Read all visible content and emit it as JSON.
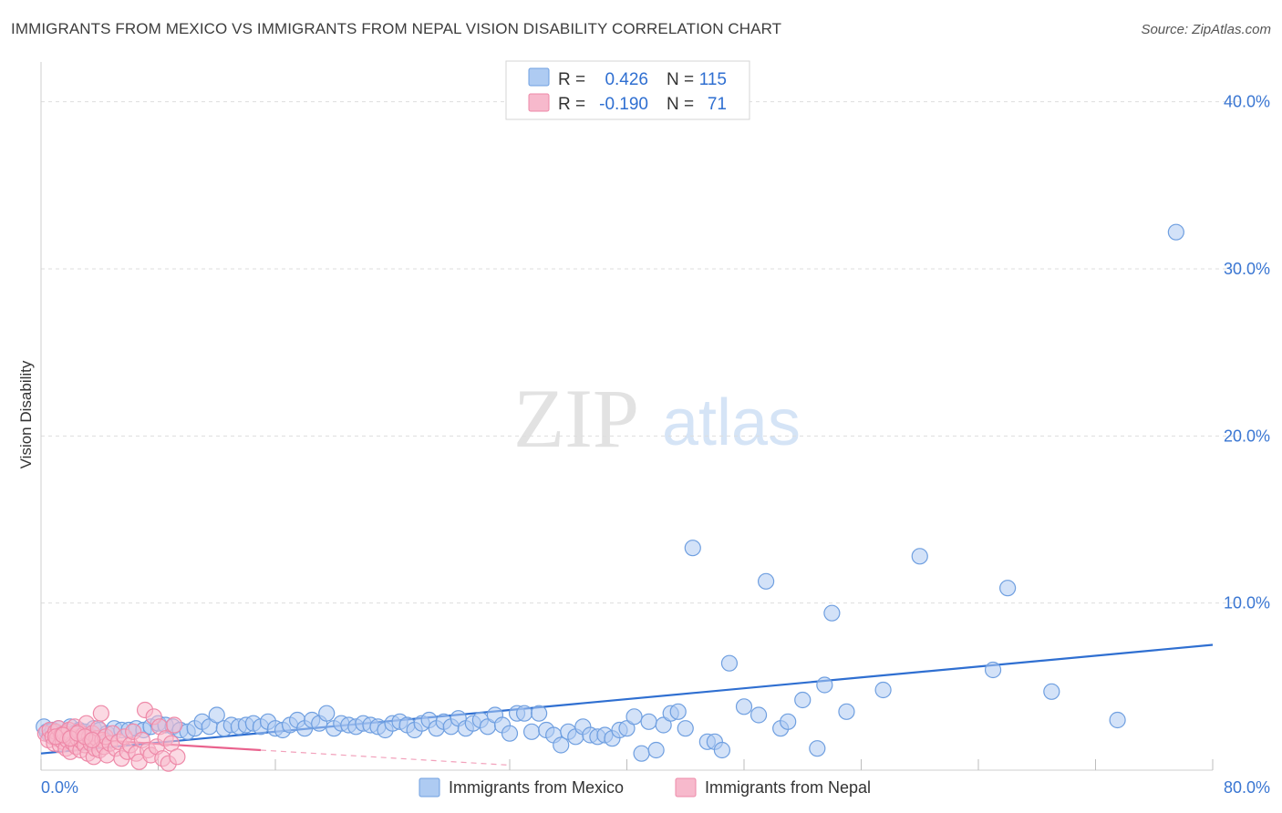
{
  "title": "IMMIGRANTS FROM MEXICO VS IMMIGRANTS FROM NEPAL VISION DISABILITY CORRELATION CHART",
  "source": "Source: ZipAtlas.com",
  "watermark": {
    "zip": "ZIP",
    "atlas": "atlas"
  },
  "colors": {
    "mexico_fill": "#aecbf2",
    "mexico_stroke": "#6f9fe0",
    "mexico_line": "#2f6fd1",
    "nepal_fill": "#f7b9cc",
    "nepal_stroke": "#ee89a8",
    "nepal_line": "#e9628d",
    "grid": "#dddddd",
    "axis_text": "#3a76d2"
  },
  "stats": {
    "r_label": "R =",
    "n_label": "N =",
    "rows": [
      {
        "series": "mexico",
        "r": "0.426",
        "n": "115"
      },
      {
        "series": "nepal",
        "r": "-0.190",
        "n": "71"
      }
    ]
  },
  "chart_data": {
    "type": "scatter",
    "title": "IMMIGRANTS FROM MEXICO VS IMMIGRANTS FROM NEPAL VISION DISABILITY CORRELATION CHART",
    "xlabel": "",
    "ylabel": "Vision Disability",
    "xlim": [
      0,
      80
    ],
    "ylim": [
      0,
      42
    ],
    "x_tick_labels": [
      {
        "x": 0,
        "label": "0.0%"
      },
      {
        "x": 80,
        "label": "80.0%"
      }
    ],
    "x_minor_ticks": [
      8,
      16,
      32,
      40,
      48,
      56,
      64,
      72
    ],
    "y_ticks": [
      {
        "y": 10,
        "label": "10.0%"
      },
      {
        "y": 20,
        "label": "20.0%"
      },
      {
        "y": 30,
        "label": "30.0%"
      },
      {
        "y": 40,
        "label": "40.0%"
      }
    ],
    "series": [
      {
        "name": "Immigrants from Mexico",
        "key": "mexico",
        "trend": [
          [
            0,
            1.0
          ],
          [
            80,
            7.5
          ]
        ],
        "points": [
          [
            0.2,
            2.6
          ],
          [
            0.4,
            2.3
          ],
          [
            0.6,
            2.1
          ],
          [
            0.8,
            2.4
          ],
          [
            1.0,
            2.2
          ],
          [
            1.2,
            2.5
          ],
          [
            1.5,
            2.0
          ],
          [
            1.8,
            2.3
          ],
          [
            2.0,
            2.6
          ],
          [
            2.3,
            2.2
          ],
          [
            2.6,
            2.4
          ],
          [
            3.0,
            2.3
          ],
          [
            3.3,
            2.1
          ],
          [
            3.6,
            2.5
          ],
          [
            4.0,
            2.4
          ],
          [
            4.5,
            2.2
          ],
          [
            5.0,
            2.5
          ],
          [
            5.5,
            2.4
          ],
          [
            6.0,
            2.4
          ],
          [
            6.5,
            2.5
          ],
          [
            7.0,
            2.4
          ],
          [
            7.5,
            2.6
          ],
          [
            8.0,
            2.8
          ],
          [
            8.5,
            2.7
          ],
          [
            9.0,
            2.6
          ],
          [
            9.5,
            2.4
          ],
          [
            10.0,
            2.3
          ],
          [
            10.5,
            2.5
          ],
          [
            11.0,
            2.9
          ],
          [
            11.5,
            2.6
          ],
          [
            12.0,
            3.3
          ],
          [
            12.5,
            2.5
          ],
          [
            13.0,
            2.7
          ],
          [
            13.5,
            2.6
          ],
          [
            14.0,
            2.7
          ],
          [
            14.5,
            2.8
          ],
          [
            15.0,
            2.6
          ],
          [
            15.5,
            2.9
          ],
          [
            16.0,
            2.5
          ],
          [
            16.5,
            2.4
          ],
          [
            17.0,
            2.7
          ],
          [
            17.5,
            3.0
          ],
          [
            18.0,
            2.5
          ],
          [
            18.5,
            3.0
          ],
          [
            19.0,
            2.8
          ],
          [
            19.5,
            3.4
          ],
          [
            20.0,
            2.5
          ],
          [
            20.5,
            2.8
          ],
          [
            21.0,
            2.7
          ],
          [
            21.5,
            2.6
          ],
          [
            22.0,
            2.8
          ],
          [
            22.5,
            2.7
          ],
          [
            23.0,
            2.6
          ],
          [
            23.5,
            2.4
          ],
          [
            24.0,
            2.8
          ],
          [
            24.5,
            2.9
          ],
          [
            25.0,
            2.7
          ],
          [
            25.5,
            2.4
          ],
          [
            26.0,
            2.8
          ],
          [
            26.5,
            3.0
          ],
          [
            27.0,
            2.5
          ],
          [
            27.5,
            2.9
          ],
          [
            28.0,
            2.6
          ],
          [
            28.5,
            3.1
          ],
          [
            29.0,
            2.5
          ],
          [
            29.5,
            2.8
          ],
          [
            30.0,
            3.0
          ],
          [
            30.5,
            2.6
          ],
          [
            31.0,
            3.3
          ],
          [
            31.5,
            2.7
          ],
          [
            32.0,
            2.2
          ],
          [
            32.5,
            3.4
          ],
          [
            33.0,
            3.4
          ],
          [
            33.5,
            2.3
          ],
          [
            34.0,
            3.4
          ],
          [
            34.5,
            2.4
          ],
          [
            35.0,
            2.1
          ],
          [
            35.5,
            1.5
          ],
          [
            36.0,
            2.3
          ],
          [
            36.5,
            2.0
          ],
          [
            37.0,
            2.6
          ],
          [
            37.5,
            2.1
          ],
          [
            38.0,
            2.0
          ],
          [
            38.5,
            2.1
          ],
          [
            39.0,
            1.9
          ],
          [
            39.5,
            2.4
          ],
          [
            40.0,
            2.5
          ],
          [
            40.5,
            3.2
          ],
          [
            41.0,
            1.0
          ],
          [
            41.5,
            2.9
          ],
          [
            42.0,
            1.2
          ],
          [
            42.5,
            2.7
          ],
          [
            43.0,
            3.4
          ],
          [
            43.5,
            3.5
          ],
          [
            44.0,
            2.5
          ],
          [
            44.5,
            13.3
          ],
          [
            45.5,
            1.7
          ],
          [
            46.0,
            1.7
          ],
          [
            46.5,
            1.2
          ],
          [
            47.0,
            6.4
          ],
          [
            48.0,
            3.8
          ],
          [
            49.0,
            3.3
          ],
          [
            49.5,
            11.3
          ],
          [
            50.5,
            2.5
          ],
          [
            51.0,
            2.9
          ],
          [
            52.0,
            4.2
          ],
          [
            53.0,
            1.3
          ],
          [
            53.5,
            5.1
          ],
          [
            54.0,
            9.4
          ],
          [
            55.0,
            3.5
          ],
          [
            57.5,
            4.8
          ],
          [
            60.0,
            12.8
          ],
          [
            65.0,
            6.0
          ],
          [
            66.0,
            10.9
          ],
          [
            69.0,
            4.7
          ],
          [
            73.5,
            3.0
          ],
          [
            77.5,
            32.2
          ]
        ]
      },
      {
        "name": "Immigrants from Nepal",
        "key": "nepal",
        "trend": [
          [
            0,
            2.0
          ],
          [
            15,
            1.2
          ]
        ],
        "trend_ext": [
          [
            15,
            1.2
          ],
          [
            32,
            0.3
          ]
        ],
        "points": [
          [
            0.3,
            2.2
          ],
          [
            0.5,
            1.8
          ],
          [
            0.6,
            2.4
          ],
          [
            0.8,
            2.0
          ],
          [
            0.9,
            1.6
          ],
          [
            1.0,
            2.3
          ],
          [
            1.1,
            1.9
          ],
          [
            1.2,
            2.5
          ],
          [
            1.3,
            1.5
          ],
          [
            1.4,
            2.1
          ],
          [
            1.5,
            1.7
          ],
          [
            1.6,
            2.2
          ],
          [
            1.7,
            1.3
          ],
          [
            1.8,
            1.8
          ],
          [
            1.9,
            2.4
          ],
          [
            2.0,
            1.1
          ],
          [
            2.1,
            2.0
          ],
          [
            2.2,
            1.6
          ],
          [
            2.3,
            2.6
          ],
          [
            2.4,
            1.4
          ],
          [
            2.5,
            1.9
          ],
          [
            2.6,
            2.3
          ],
          [
            2.7,
            1.2
          ],
          [
            2.8,
            1.7
          ],
          [
            2.9,
            2.1
          ],
          [
            3.0,
            1.5
          ],
          [
            3.1,
            2.8
          ],
          [
            3.2,
            1.0
          ],
          [
            3.3,
            2.0
          ],
          [
            3.4,
            1.6
          ],
          [
            3.5,
            2.2
          ],
          [
            3.6,
            0.8
          ],
          [
            3.7,
            1.3
          ],
          [
            3.8,
            1.9
          ],
          [
            3.9,
            2.5
          ],
          [
            4.0,
            1.2
          ],
          [
            4.1,
            3.4
          ],
          [
            4.2,
            1.8
          ],
          [
            4.3,
            1.4
          ],
          [
            4.4,
            2.0
          ],
          [
            4.5,
            0.9
          ],
          [
            4.7,
            1.6
          ],
          [
            4.9,
            2.2
          ],
          [
            5.1,
            1.3
          ],
          [
            5.3,
            1.7
          ],
          [
            5.5,
            0.7
          ],
          [
            5.7,
            2.0
          ],
          [
            5.9,
            1.1
          ],
          [
            6.1,
            1.5
          ],
          [
            6.3,
            2.3
          ],
          [
            6.5,
            1.0
          ],
          [
            6.7,
            0.5
          ],
          [
            6.9,
            1.8
          ],
          [
            7.1,
            3.6
          ],
          [
            7.3,
            1.2
          ],
          [
            7.5,
            0.9
          ],
          [
            7.7,
            3.2
          ],
          [
            7.9,
            1.4
          ],
          [
            8.1,
            2.6
          ],
          [
            8.3,
            0.7
          ],
          [
            8.5,
            1.9
          ],
          [
            8.7,
            0.4
          ],
          [
            8.9,
            1.6
          ],
          [
            9.1,
            2.7
          ],
          [
            9.3,
            0.8
          ],
          [
            1.0,
            2.0
          ],
          [
            1.5,
            2.1
          ],
          [
            2.0,
            1.9
          ],
          [
            2.5,
            2.2
          ],
          [
            3.0,
            2.0
          ],
          [
            3.5,
            1.8
          ]
        ]
      }
    ]
  },
  "legend": {
    "items": [
      {
        "key": "mexico",
        "label": "Immigrants from Mexico"
      },
      {
        "key": "nepal",
        "label": "Immigrants from Nepal"
      }
    ]
  }
}
